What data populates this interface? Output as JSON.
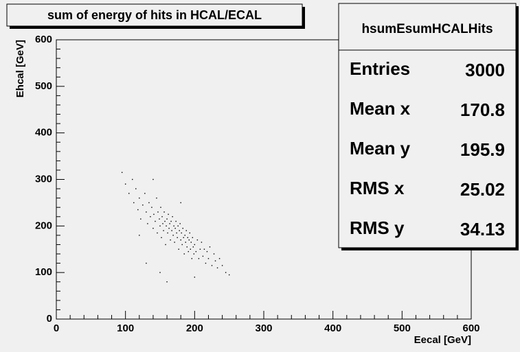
{
  "chart_data": {
    "type": "scatter",
    "title": "sum of energy of hits in HCAL/ECAL",
    "x_label": "Eecal [GeV]",
    "y_label": "Ehcal [GeV]",
    "xlim": [
      0,
      600
    ],
    "ylim": [
      0,
      600
    ],
    "xticks": [
      0,
      100,
      200,
      300,
      400,
      500,
      600
    ],
    "yticks": [
      0,
      100,
      200,
      300,
      400,
      500,
      600
    ],
    "color": "#000000",
    "stats": {
      "name": "hsumEsumHCALHits",
      "rows": [
        {
          "label": "Entries",
          "value": 3000
        },
        {
          "label": "Mean x",
          "value": 170.8
        },
        {
          "label": "Mean y",
          "value": 195.9
        },
        {
          "label": "RMS x",
          "value": 25.02
        },
        {
          "label": "RMS y",
          "value": 34.13
        }
      ]
    },
    "x": [
      95,
      100,
      105,
      110,
      112,
      115,
      118,
      120,
      122,
      125,
      128,
      130,
      132,
      134,
      136,
      138,
      140,
      141,
      143,
      145,
      146,
      147,
      149,
      150,
      151,
      152,
      153,
      154,
      155,
      156,
      157,
      158,
      159,
      160,
      161,
      162,
      163,
      164,
      165,
      166,
      167,
      168,
      169,
      170,
      171,
      172,
      173,
      174,
      175,
      176,
      177,
      178,
      179,
      180,
      181,
      182,
      183,
      184,
      185,
      186,
      187,
      188,
      189,
      190,
      191,
      192,
      193,
      194,
      195,
      196,
      197,
      198,
      199,
      200,
      202,
      204,
      206,
      208,
      210,
      212,
      214,
      216,
      218,
      220,
      222,
      225,
      228,
      230,
      233,
      236,
      240,
      245,
      250,
      130,
      150,
      160,
      120,
      140,
      200,
      180
    ],
    "y": [
      315,
      290,
      270,
      300,
      250,
      280,
      235,
      260,
      215,
      245,
      270,
      230,
      205,
      250,
      220,
      240,
      195,
      225,
      210,
      260,
      185,
      230,
      215,
      200,
      240,
      175,
      220,
      205,
      190,
      230,
      210,
      160,
      200,
      215,
      185,
      225,
      195,
      205,
      170,
      210,
      190,
      220,
      180,
      200,
      165,
      195,
      210,
      185,
      175,
      200,
      150,
      190,
      205,
      170,
      185,
      160,
      195,
      175,
      140,
      180,
      165,
      190,
      155,
      175,
      145,
      170,
      185,
      150,
      165,
      130,
      175,
      155,
      140,
      160,
      145,
      170,
      130,
      150,
      165,
      135,
      150,
      120,
      145,
      130,
      155,
      115,
      140,
      125,
      110,
      130,
      115,
      100,
      95,
      120,
      100,
      80,
      180,
      300,
      90,
      250
    ]
  }
}
